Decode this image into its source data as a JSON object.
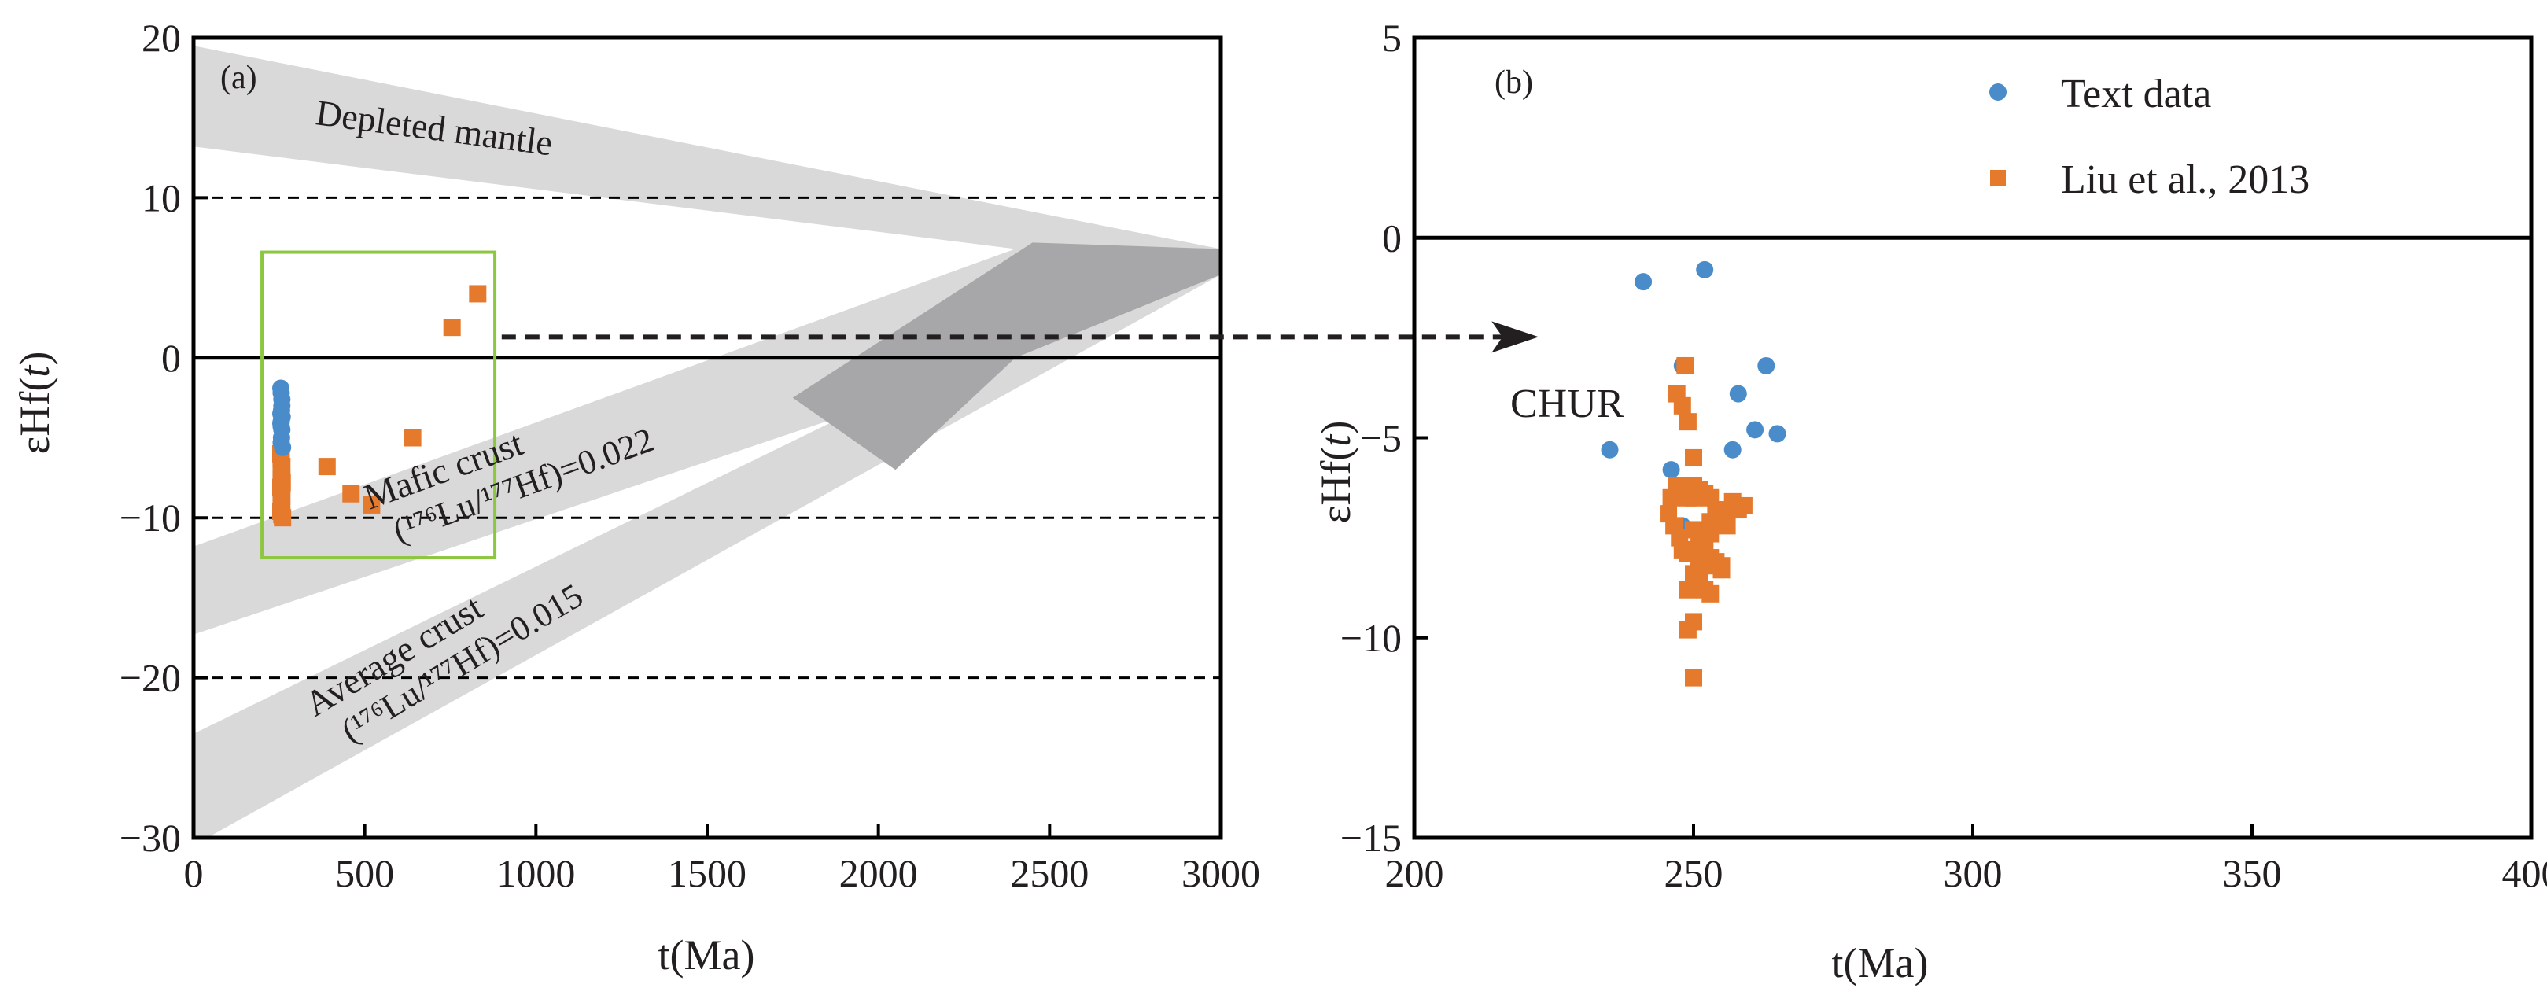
{
  "figure_title": "",
  "chart_data": [
    {
      "type": "scatter",
      "panel": "(a)",
      "xlabel": "t(Ma)",
      "ylabel_prefix": "εHf(",
      "ylabel_var": "t",
      "ylabel_suffix": ")",
      "xlim": [
        0,
        3000
      ],
      "ylim": [
        -30,
        20
      ],
      "xticks": [
        0,
        500,
        1000,
        1500,
        2000,
        2500,
        3000
      ],
      "yticks": [
        -30,
        -20,
        -10,
        0,
        10,
        20
      ],
      "xtick_labels": [
        "0",
        "500",
        "1000",
        "1500",
        "2000",
        "2500",
        "3000"
      ],
      "ytick_labels": [
        "−30",
        "−20",
        "−10",
        "0",
        "10",
        "20"
      ],
      "grid": false,
      "reference_lines": [
        {
          "y": 10,
          "style": "dashed"
        },
        {
          "y": 0,
          "style": "solid",
          "name": "CHUR"
        },
        {
          "y": -10,
          "style": "dashed"
        },
        {
          "y": -20,
          "style": "dashed"
        }
      ],
      "bands": [
        {
          "name": "Depleted mantle",
          "label": "Depleted mantle",
          "upper": [
            [
              0,
              19.5
            ],
            [
              3000,
              6.8
            ]
          ],
          "lower": [
            [
              0,
              13.2
            ],
            [
              3000,
              5.2
            ]
          ]
        },
        {
          "name": "Mafic crust",
          "label": "Mafic crust",
          "ratio_label": "(¹⁷⁶Lu/¹⁷⁷Hf)=0.022",
          "upper": [
            [
              0,
              -11.8
            ],
            [
              2450,
              7.2
            ],
            [
              3000,
              6.8
            ]
          ],
          "lower": [
            [
              0,
              -17.3
            ],
            [
              2400,
              0
            ],
            [
              3000,
              5.2
            ]
          ]
        },
        {
          "name": "Average crust",
          "label": "Average crust",
          "ratio_label": "(¹⁷⁶Lu/¹⁷⁷Hf)=0.015",
          "upper": [
            [
              0,
              -23.5
            ],
            [
              2900,
              6.8
            ],
            [
              3000,
              6.8
            ]
          ],
          "lower": [
            [
              0,
              -30
            ],
            [
              40,
              -30
            ],
            [
              3000,
              5.2
            ]
          ]
        }
      ],
      "overlap_band": {
        "points": [
          [
            1750,
            -2.5
          ],
          [
            2450,
            7.2
          ],
          [
            3000,
            6.8
          ],
          [
            3000,
            5.2
          ],
          [
            2400,
            0
          ],
          [
            2050,
            -7
          ]
        ]
      },
      "highlight_box": {
        "x": [
          200,
          880
        ],
        "y": [
          -12.5,
          6.6
        ],
        "color": "#8dc63f"
      },
      "arrow": {
        "from": [
          900,
          1.3
        ],
        "to_panel": "(b)",
        "to": [
          222,
          -2.5
        ]
      },
      "series": [
        {
          "name": "Text data",
          "marker": "circle",
          "color": "#4a8cc9",
          "x": [
            255,
            256,
            258,
            257,
            259,
            256,
            255,
            258,
            257,
            256,
            260,
            255,
            258,
            256
          ],
          "y": [
            -1.9,
            -2.2,
            -3,
            -3.3,
            -3.7,
            -4,
            -4.1,
            -4.5,
            -5,
            -5.3,
            -5.6,
            -3.5,
            -2.6,
            -4.3
          ]
        },
        {
          "name": "Liu et al., 2013",
          "marker": "square",
          "color": "#e5792c",
          "x": [
            255,
            256,
            258,
            257,
            256,
            259,
            255,
            257,
            258,
            256,
            257,
            255,
            258,
            260,
            256,
            257,
            390,
            460,
            520,
            640,
            755,
            830
          ],
          "y": [
            -6,
            -6.4,
            -6.8,
            -7.2,
            -7.5,
            -7.8,
            -8.1,
            -8.4,
            -8.7,
            -9,
            -9.3,
            -9.6,
            -9.8,
            -10,
            -6.2,
            -7,
            -6.8,
            -8.5,
            -9.2,
            -5,
            1.9,
            4
          ]
        }
      ]
    },
    {
      "type": "scatter",
      "panel": "(b)",
      "xlabel": "t(Ma)",
      "ylabel_prefix": "εHf(",
      "ylabel_var": "t",
      "ylabel_suffix": ")",
      "xlim": [
        200,
        400
      ],
      "ylim": [
        -15,
        5
      ],
      "xticks": [
        200,
        250,
        300,
        350,
        400
      ],
      "yticks": [
        -15,
        -10,
        -5,
        0,
        5
      ],
      "xtick_labels": [
        "200",
        "250",
        "300",
        "350",
        "400"
      ],
      "ytick_labels": [
        "−15",
        "−10",
        "−5",
        "0",
        "5"
      ],
      "grid": false,
      "reference_lines": [
        {
          "y": 0,
          "style": "solid",
          "name": "CHUR"
        }
      ],
      "annotation": "CHUR",
      "legend": {
        "position": "top-right",
        "entries": [
          "Text data",
          "Liu et al., 2013"
        ]
      },
      "series": [
        {
          "name": "Text data",
          "marker": "circle",
          "color": "#4a8cc9",
          "x": [
            235,
            241,
            246,
            248,
            252,
            257,
            258,
            261,
            263,
            265,
            248
          ],
          "y": [
            -5.3,
            -1.1,
            -5.8,
            -3.2,
            -0.8,
            -5.3,
            -3.9,
            -4.8,
            -3.2,
            -4.9,
            -7.2
          ]
        },
        {
          "name": "Liu et al., 2013",
          "marker": "square",
          "color": "#e5792c",
          "x": [
            247,
            248,
            248.5,
            249,
            247,
            246,
            245.5,
            246.5,
            247.5,
            248,
            249,
            250,
            251,
            252,
            253,
            254,
            255,
            256,
            257,
            258,
            259,
            250,
            251,
            252,
            253,
            254,
            255,
            250,
            251,
            252,
            253,
            249,
            250,
            251,
            252,
            253,
            250,
            249,
            250,
            251,
            252,
            253,
            254,
            255,
            249,
            250,
            250,
            251
          ],
          "y": [
            -3.9,
            -4.2,
            -3.2,
            -4.6,
            -6.2,
            -6.5,
            -6.9,
            -7.2,
            -7.5,
            -7.8,
            -6.5,
            -6.2,
            -6.3,
            -6.4,
            -6.5,
            -6.8,
            -7,
            -7.2,
            -6.6,
            -6.8,
            -6.7,
            -7.3,
            -7.6,
            -7.9,
            -8,
            -8.2,
            -8.3,
            -8.4,
            -8.6,
            -8.8,
            -8.9,
            -9.8,
            -9.6,
            -8.1,
            -7.5,
            -7.4,
            -5.5,
            -7.9,
            -8.6,
            -8.2,
            -7.7,
            -7.1,
            -8.1,
            -8.2,
            -8.8,
            -11,
            -6.5,
            -6.3
          ]
        }
      ]
    }
  ]
}
